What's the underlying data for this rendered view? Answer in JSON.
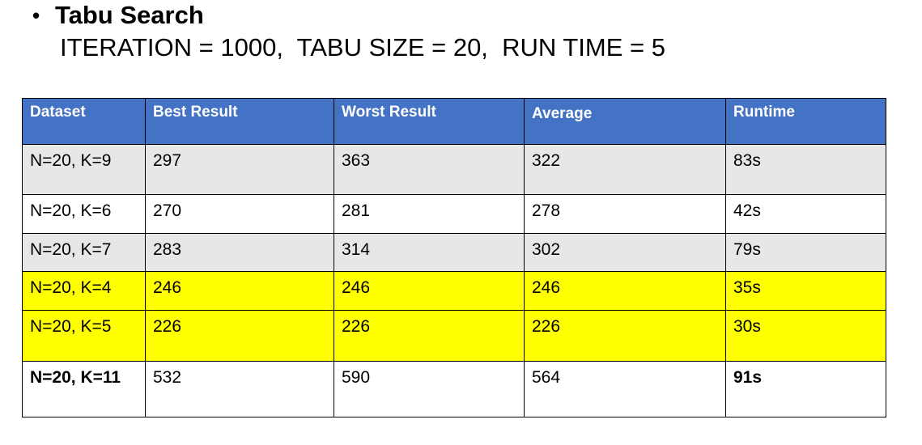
{
  "heading": {
    "bullet": "•",
    "title": "Tabu Search",
    "params": "ITERATION = 1000,  TABU SIZE = 20,  RUN TIME = 5"
  },
  "table": {
    "headers": [
      "Dataset",
      "Best Result",
      "Worst Result",
      "Average",
      "Runtime"
    ],
    "rows": [
      {
        "dataset": "N=20, K=9",
        "best": "297",
        "worst": "363",
        "average": "322",
        "runtime": "83s",
        "highlight": "gray"
      },
      {
        "dataset": "N=20, K=6",
        "best": "270",
        "worst": "281",
        "average": "278",
        "runtime": "42s",
        "highlight": "white"
      },
      {
        "dataset": "N=20, K=7",
        "best": "283",
        "worst": "314",
        "average": "302",
        "runtime": "79s",
        "highlight": "gray"
      },
      {
        "dataset": "N=20, K=4",
        "best": "246",
        "worst": "246",
        "average": "246",
        "runtime": "35s",
        "highlight": "yellow"
      },
      {
        "dataset": "N=20, K=5",
        "best": "226",
        "worst": "226",
        "average": "226",
        "runtime": "30s",
        "highlight": "yellow"
      },
      {
        "dataset": "N=20, K=11",
        "best": "532",
        "worst": "590",
        "average": "564",
        "runtime": "91s",
        "highlight": "white"
      }
    ]
  },
  "colors": {
    "header_bg": "#4472c4",
    "gray_row": "#e7e7e7",
    "yellow_row": "#ffff00"
  }
}
